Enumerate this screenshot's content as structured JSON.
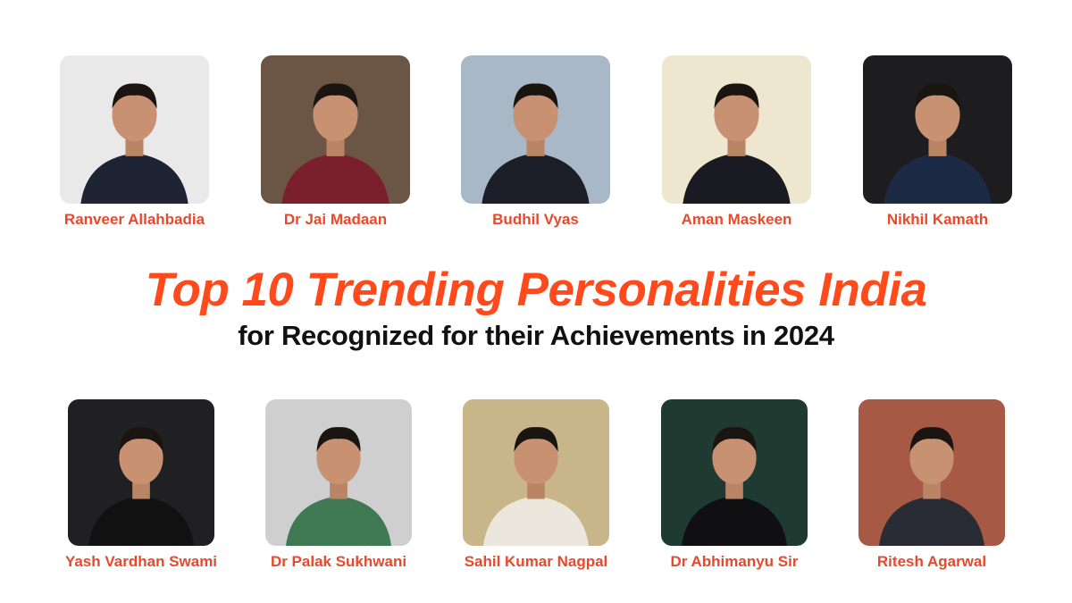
{
  "title": "Top 10 Trending Personalities India",
  "subtitle": "for Recognized for their Achievements in 2024",
  "accent_color": "#ff4a1c",
  "name_color": "#e8492c",
  "personalities_top": [
    {
      "name": "Ranveer Allahbadia",
      "bg": "#e9e9ea",
      "outfit": "#1e2433"
    },
    {
      "name": "Dr Jai Madaan",
      "bg": "#6b5646",
      "outfit": "#7a1f2d"
    },
    {
      "name": "Budhil Vyas",
      "bg": "#a9b8c6",
      "outfit": "#1c1f2a"
    },
    {
      "name": "Aman Maskeen",
      "bg": "#efe6cf",
      "outfit": "#1a1b22"
    },
    {
      "name": "Nikhil Kamath",
      "bg": "#1d1d1f",
      "outfit": "#1d2a45"
    }
  ],
  "personalities_bottom": [
    {
      "name": "Yash Vardhan Swami",
      "bg": "#202023",
      "outfit": "#111112"
    },
    {
      "name": "Dr Palak Sukhwani",
      "bg": "#cfcfd0",
      "outfit": "#3f7a55"
    },
    {
      "name": "Sahil Kumar Nagpal",
      "bg": "#c9b58a",
      "outfit": "#ece7dc"
    },
    {
      "name": "Dr Abhimanyu Sir",
      "bg": "#1f3a30",
      "outfit": "#101012"
    },
    {
      "name": "Ritesh Agarwal",
      "bg": "#a65a45",
      "outfit": "#2a2c35"
    }
  ]
}
